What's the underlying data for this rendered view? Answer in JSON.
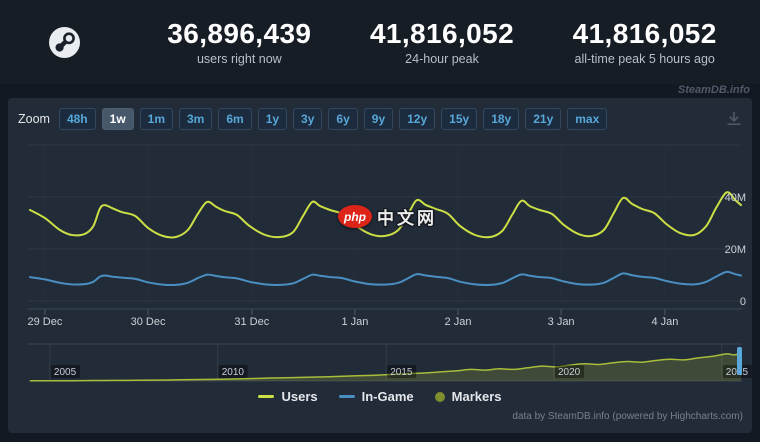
{
  "header": {
    "stats": [
      {
        "value": "36,896,439",
        "label": "users right now"
      },
      {
        "value": "41,816,052",
        "label": "24-hour peak"
      },
      {
        "value": "41,816,052",
        "label": "all-time peak 5 hours ago"
      }
    ]
  },
  "site_watermark": "SteamDB.info",
  "toolbar": {
    "zoom_label": "Zoom",
    "ranges": [
      "48h",
      "1w",
      "1m",
      "3m",
      "6m",
      "1y",
      "3y",
      "6y",
      "9y",
      "12y",
      "15y",
      "18y",
      "21y",
      "max"
    ],
    "selected_range": "1w"
  },
  "chart_data": {
    "type": "line",
    "x_axis": {
      "labels": [
        "29 Dec",
        "30 Dec",
        "31 Dec",
        "1 Jan",
        "2 Jan",
        "3 Jan",
        "4 Jan"
      ],
      "tick_t": [
        0.021,
        0.166,
        0.312,
        0.457,
        0.602,
        0.747,
        0.893
      ]
    },
    "y_axis": {
      "position": "right",
      "unit": "M",
      "ticks": [
        {
          "label": "40M",
          "value": 40
        },
        {
          "label": "20M",
          "value": 20
        },
        {
          "label": "0",
          "value": 0
        }
      ],
      "max_value": 60
    },
    "t": [
      0.0,
      0.021,
      0.042,
      0.059,
      0.077,
      0.089,
      0.098,
      0.105,
      0.115,
      0.129,
      0.148,
      0.166,
      0.187,
      0.205,
      0.222,
      0.236,
      0.249,
      0.262,
      0.274,
      0.291,
      0.309,
      0.331,
      0.352,
      0.37,
      0.384,
      0.397,
      0.408,
      0.422,
      0.439,
      0.457,
      0.478,
      0.499,
      0.518,
      0.532,
      0.544,
      0.557,
      0.571,
      0.588,
      0.605,
      0.626,
      0.647,
      0.664,
      0.678,
      0.691,
      0.703,
      0.717,
      0.734,
      0.751,
      0.771,
      0.79,
      0.807,
      0.821,
      0.834,
      0.847,
      0.861,
      0.878,
      0.895,
      0.914,
      0.934,
      0.951,
      0.965,
      0.98,
      0.992,
      1.0
    ],
    "series": [
      {
        "name": "Users",
        "color": "#ccdf45",
        "values": [
          35.0,
          31.9,
          27.3,
          25.4,
          25.8,
          28.8,
          35.4,
          36.9,
          35.8,
          34.2,
          32.7,
          28.1,
          25.0,
          24.6,
          27.3,
          33.5,
          38.1,
          36.2,
          34.6,
          33.1,
          28.8,
          25.4,
          24.6,
          26.5,
          32.7,
          38.1,
          36.5,
          35.0,
          33.5,
          29.2,
          25.8,
          25.0,
          27.3,
          33.5,
          38.8,
          36.9,
          35.4,
          33.5,
          28.8,
          25.4,
          24.6,
          26.9,
          33.1,
          38.5,
          36.5,
          35.0,
          33.5,
          29.2,
          25.8,
          25.0,
          27.3,
          33.8,
          39.6,
          37.3,
          35.4,
          33.8,
          29.6,
          26.2,
          25.4,
          28.8,
          35.8,
          41.8,
          38.8,
          36.9
        ]
      },
      {
        "name": "In-Game",
        "color": "#4a8fc2",
        "values": [
          9.2,
          8.3,
          7.0,
          6.4,
          6.5,
          7.4,
          9.3,
          9.8,
          9.4,
          9.0,
          8.5,
          7.2,
          6.3,
          6.2,
          7.0,
          8.8,
          10.1,
          9.6,
          9.1,
          8.7,
          7.4,
          6.4,
          6.2,
          6.8,
          8.5,
          10.1,
          9.7,
          9.2,
          8.8,
          7.5,
          6.5,
          6.3,
          7.0,
          8.8,
          10.3,
          9.8,
          9.3,
          8.8,
          7.4,
          6.4,
          6.2,
          6.9,
          8.7,
          10.2,
          9.7,
          9.2,
          8.8,
          7.5,
          6.5,
          6.3,
          7.0,
          8.9,
          10.6,
          9.9,
          9.3,
          8.9,
          7.7,
          6.7,
          6.4,
          7.4,
          9.4,
          11.2,
          10.3,
          9.8
        ]
      }
    ],
    "navigator": {
      "years": [
        {
          "label": "2005",
          "t": 0.028
        },
        {
          "label": "2010",
          "t": 0.264
        },
        {
          "label": "2015",
          "t": 0.501
        },
        {
          "label": "2020",
          "t": 0.737
        },
        {
          "label": "2025",
          "t": 0.973
        }
      ],
      "t": [
        0,
        0.03,
        0.06,
        0.09,
        0.12,
        0.15,
        0.18,
        0.21,
        0.24,
        0.27,
        0.3,
        0.33,
        0.36,
        0.39,
        0.42,
        0.45,
        0.48,
        0.5,
        0.52,
        0.54,
        0.56,
        0.58,
        0.6,
        0.62,
        0.64,
        0.66,
        0.68,
        0.7,
        0.72,
        0.74,
        0.76,
        0.78,
        0.8,
        0.82,
        0.84,
        0.86,
        0.88,
        0.9,
        0.92,
        0.94,
        0.96,
        0.98,
        0.99,
        1.0
      ],
      "values": [
        0.3,
        0.4,
        0.5,
        0.7,
        0.9,
        1.1,
        1.4,
        1.8,
        2.3,
        2.8,
        3.4,
        4.2,
        5.0,
        5.8,
        6.5,
        7.5,
        8.5,
        9.5,
        10.5,
        11.5,
        12.5,
        14.0,
        15.5,
        17.5,
        16.5,
        18.5,
        17.5,
        20.0,
        22.5,
        21.5,
        24.0,
        26.0,
        25.0,
        27.5,
        29.5,
        28.5,
        31.0,
        33.0,
        32.0,
        35.0,
        37.5,
        41.0,
        39.5,
        42.0
      ],
      "max_value": 56,
      "line_color": "#a8bd3a",
      "fill_color": "rgba(168,189,58,0.22)",
      "handle_color": "#5aa8da"
    }
  },
  "legend": [
    {
      "label": "Users",
      "swatch": "line",
      "color": "#ccdf45"
    },
    {
      "label": "In-Game",
      "swatch": "line",
      "color": "#4a8fc2"
    },
    {
      "label": "Markers",
      "swatch": "circle",
      "color": "#7e8e2e"
    }
  ],
  "credit": "data by SteamDB.info (powered by Highcharts.com)",
  "php_watermark": {
    "badge": "php",
    "text": "中文网"
  },
  "colors": {
    "page_background": "#131922",
    "header_background": "#171d25",
    "panel_background": "#222b38",
    "grid_line": "#2d3845",
    "vertical_grid": "#27303d",
    "axis_line": "#3c4856",
    "axis_label": "#ccd1d7",
    "range_button_text": "#57a7d9",
    "stat_label": "#b9bfc6"
  }
}
